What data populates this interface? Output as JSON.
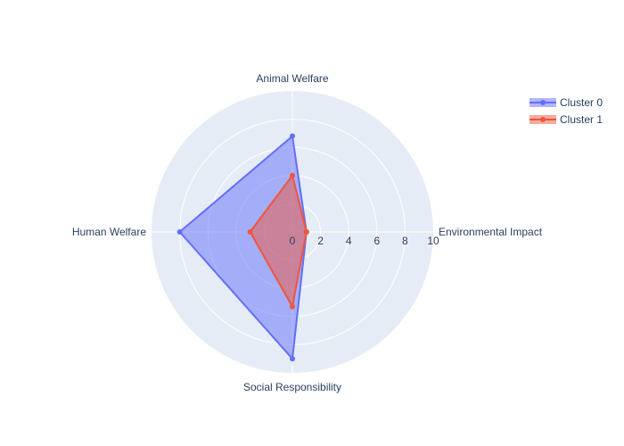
{
  "chart_data": {
    "type": "radar",
    "axes": [
      "Environmental Impact",
      "Animal Welfare",
      "Human Welfare",
      "Social Responsibility"
    ],
    "radial_range": [
      0,
      10
    ],
    "radial_ticks": [
      "0",
      "2",
      "4",
      "6",
      "8",
      "10"
    ],
    "grid": true,
    "legend_position": "top-right",
    "series": [
      {
        "name": "Cluster 0",
        "values": [
          1,
          6.8,
          8,
          9
        ],
        "color": "#636efa"
      },
      {
        "name": "Cluster 1",
        "values": [
          1,
          4,
          3,
          5.3
        ],
        "color": "#ef553b"
      }
    ]
  }
}
